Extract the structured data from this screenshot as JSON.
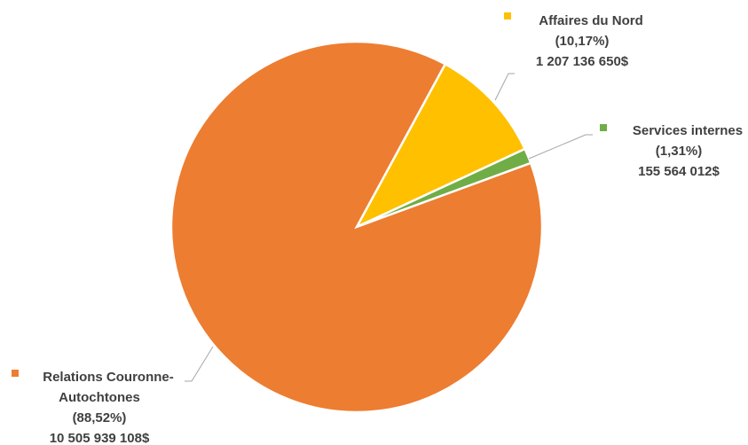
{
  "chart_data": {
    "type": "pie",
    "title": "",
    "legend": "none",
    "slices": [
      {
        "name_lines": [
          "Affaires du Nord"
        ],
        "percent": 10.17,
        "percent_label": "(10,17%)",
        "value": 1207136650,
        "value_label": "1 207 136 650$",
        "color": "#FFC000"
      },
      {
        "name_lines": [
          "Services internes"
        ],
        "percent": 1.31,
        "percent_label": "(1,31%)",
        "value": 155564012,
        "value_label": "155 564 012$",
        "color": "#70AD47"
      },
      {
        "name_lines": [
          "Relations Couronne-",
          "Autochtones"
        ],
        "percent": 88.52,
        "percent_label": "(88,52%)",
        "value": 10505939108,
        "value_label": "10 505 939 108$",
        "color": "#ED7D31"
      }
    ]
  }
}
